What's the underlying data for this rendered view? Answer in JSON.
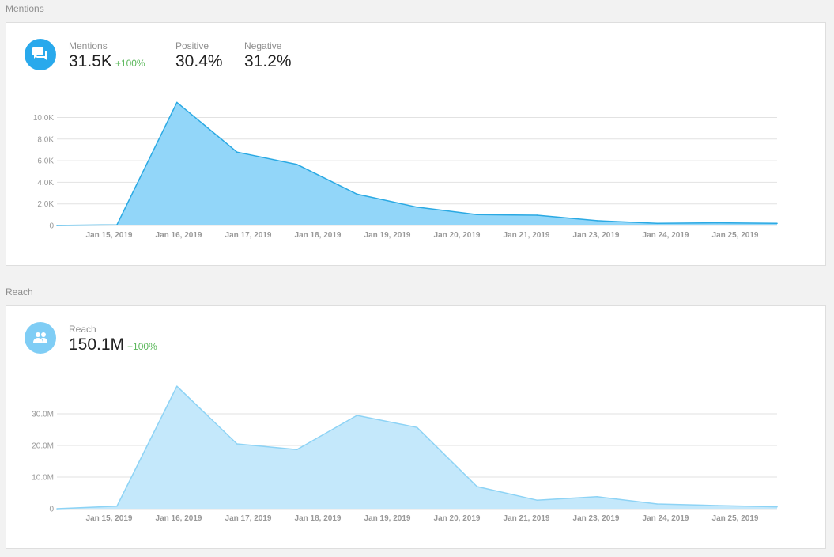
{
  "sections": {
    "mentions": {
      "title": "Mentions",
      "main_label": "Mentions",
      "main_value": "31.5K",
      "main_change": "+100%",
      "positive_label": "Positive",
      "positive_value": "30.4%",
      "negative_label": "Negative",
      "negative_value": "31.2%",
      "icon": "chat-bubbles-icon",
      "icon_color": "#29a9ec"
    },
    "reach": {
      "title": "Reach",
      "main_label": "Reach",
      "main_value": "150.1M",
      "main_change": "+100%",
      "icon": "people-icon",
      "icon_color": "#7fcdf5"
    }
  },
  "colors": {
    "mentions_fill": "#92d6f9",
    "mentions_line": "#2aa9e3",
    "reach_fill": "#c4e8fb",
    "reach_line": "#8dd3f5",
    "positive_change": "#5cb85c",
    "gridline": "#e2e2e2"
  },
  "chart_data": [
    {
      "type": "area",
      "title": "",
      "x_tick_labels": [
        "Jan 15, 2019",
        "Jan 16, 2019",
        "Jan 17, 2019",
        "Jan 18, 2019",
        "Jan 19, 2019",
        "Jan 20, 2019",
        "Jan 21, 2019",
        "Jan 23, 2019",
        "Jan 24, 2019",
        "Jan 25, 2019"
      ],
      "y_tick_labels": [
        "0",
        "2.0K",
        "4.0K",
        "6.0K",
        "8.0K",
        "10.0K"
      ],
      "y_ticks": [
        0,
        2000,
        4000,
        6000,
        8000,
        10000
      ],
      "ylim": [
        0,
        10000
      ],
      "grid": true,
      "series": [
        {
          "values": [
            10,
            60,
            11400,
            6800,
            5650,
            2900,
            1700,
            1000,
            950,
            450,
            200,
            250,
            200
          ]
        }
      ]
    },
    {
      "type": "area",
      "title": "",
      "x_tick_labels": [
        "Jan 15, 2019",
        "Jan 16, 2019",
        "Jan 17, 2019",
        "Jan 18, 2019",
        "Jan 19, 2019",
        "Jan 20, 2019",
        "Jan 21, 2019",
        "Jan 23, 2019",
        "Jan 24, 2019",
        "Jan 25, 2019"
      ],
      "y_tick_labels": [
        "0",
        "10.0M",
        "20.0M",
        "30.0M"
      ],
      "y_ticks": [
        0,
        10000000,
        20000000,
        30000000
      ],
      "ylim": [
        0,
        30000000
      ],
      "grid": true,
      "series": [
        {
          "values": [
            0,
            800000,
            38700000,
            20500000,
            18700000,
            29500000,
            25700000,
            7000000,
            2700000,
            3800000,
            1500000,
            1000000,
            600000
          ]
        }
      ]
    }
  ]
}
